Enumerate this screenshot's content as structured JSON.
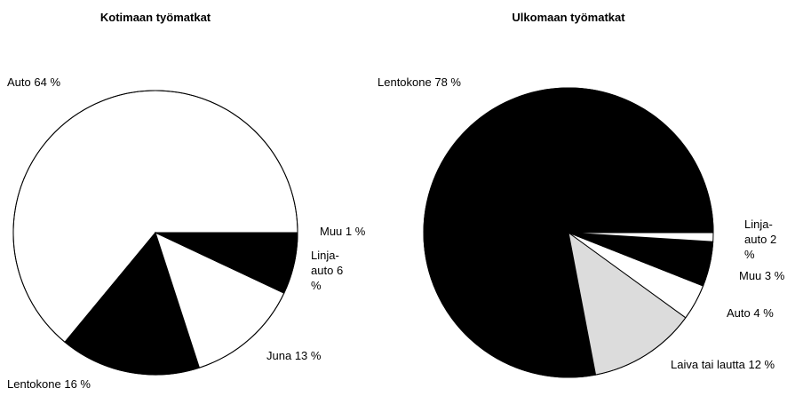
{
  "chart_data": [
    {
      "type": "pie",
      "title": "Kotimaan työmatkat",
      "categories": [
        "Auto",
        "Lentokone",
        "Juna",
        "Linja-auto",
        "Muu"
      ],
      "values": [
        64,
        16,
        13,
        6,
        1
      ],
      "value_labels": [
        "64 %",
        "16 %",
        "13 %",
        "6 %",
        "1 %"
      ],
      "colors": [
        "#ffffff",
        "#000000",
        "#ffffff",
        "#000000",
        "#000000"
      ]
    },
    {
      "type": "pie",
      "title": "Ulkomaan työmatkat",
      "categories": [
        "Lentokone",
        "Laiva tai lautta",
        "Auto",
        "Muu",
        "Linja-auto"
      ],
      "values": [
        78,
        12,
        4,
        3,
        2
      ],
      "value_labels": [
        "78 %",
        "12 %",
        "4 %",
        "3 %",
        "2 %"
      ],
      "colors": [
        "#000000",
        "#dcdcdc",
        "#ffffff",
        "#000000",
        "#000000"
      ]
    }
  ]
}
